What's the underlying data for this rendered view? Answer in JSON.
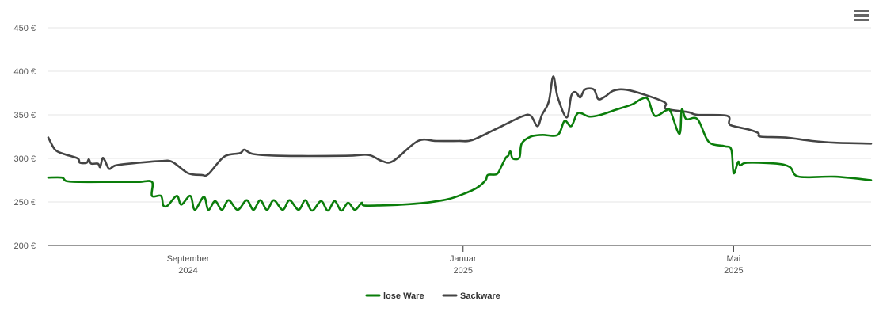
{
  "chart_data": {
    "type": "line",
    "y_axis": {
      "min": 200,
      "max": 450,
      "step": 50,
      "ticks": [
        "200 €",
        "250 €",
        "300 €",
        "350 €",
        "400 €",
        "450 €"
      ]
    },
    "x_axis": {
      "start": "2024-07-01",
      "end": "2025-07-01",
      "ticks": [
        {
          "date": "2024-09-01",
          "label": "September",
          "sublabel": "2024"
        },
        {
          "date": "2025-01-01",
          "label": "Januar",
          "sublabel": "2025"
        },
        {
          "date": "2025-05-01",
          "label": "Mai",
          "sublabel": "2025"
        }
      ]
    },
    "grid": "horizontal",
    "legend_position": "bottom-center",
    "series": [
      {
        "name": "lose Ware",
        "color": "#0a7d0a",
        "points": [
          [
            "2024-07-01",
            278
          ],
          [
            "2024-07-07",
            278
          ],
          [
            "2024-07-09",
            274
          ],
          [
            "2024-07-15",
            273
          ],
          [
            "2024-07-31",
            273
          ],
          [
            "2024-08-10",
            273
          ],
          [
            "2024-08-16",
            273
          ],
          [
            "2024-08-16",
            257
          ],
          [
            "2024-08-20",
            257
          ],
          [
            "2024-08-21",
            246
          ],
          [
            "2024-08-23",
            246
          ],
          [
            "2024-08-27",
            257
          ],
          [
            "2024-08-29",
            247
          ],
          [
            "2024-09-02",
            257
          ],
          [
            "2024-09-04",
            241
          ],
          [
            "2024-09-08",
            256
          ],
          [
            "2024-09-10",
            241
          ],
          [
            "2024-09-13",
            251
          ],
          [
            "2024-09-16",
            241
          ],
          [
            "2024-09-19",
            252
          ],
          [
            "2024-09-23",
            241
          ],
          [
            "2024-09-27",
            252
          ],
          [
            "2024-09-30",
            241
          ],
          [
            "2024-10-03",
            252
          ],
          [
            "2024-10-06",
            241
          ],
          [
            "2024-10-09",
            252
          ],
          [
            "2024-10-13",
            241
          ],
          [
            "2024-10-16",
            252
          ],
          [
            "2024-10-20",
            241
          ],
          [
            "2024-10-23",
            252
          ],
          [
            "2024-10-26",
            240
          ],
          [
            "2024-10-30",
            251
          ],
          [
            "2024-11-02",
            240
          ],
          [
            "2024-11-05",
            251
          ],
          [
            "2024-11-08",
            240
          ],
          [
            "2024-11-11",
            249
          ],
          [
            "2024-11-14",
            241
          ],
          [
            "2024-11-17",
            249
          ],
          [
            "2024-11-18",
            246
          ],
          [
            "2024-11-25",
            246
          ],
          [
            "2024-12-05",
            247
          ],
          [
            "2024-12-15",
            249
          ],
          [
            "2024-12-25",
            253
          ],
          [
            "2025-01-01",
            259
          ],
          [
            "2025-01-07",
            266
          ],
          [
            "2025-01-11",
            275
          ],
          [
            "2025-01-12",
            281
          ],
          [
            "2025-01-16",
            282
          ],
          [
            "2025-01-18",
            291
          ],
          [
            "2025-01-20",
            301
          ],
          [
            "2025-01-21",
            303
          ],
          [
            "2025-01-22",
            308
          ],
          [
            "2025-01-23",
            300
          ],
          [
            "2025-01-26",
            301
          ],
          [
            "2025-01-27",
            317
          ],
          [
            "2025-01-31",
            325
          ],
          [
            "2025-02-05",
            327
          ],
          [
            "2025-02-12",
            327
          ],
          [
            "2025-02-15",
            343
          ],
          [
            "2025-02-18",
            337
          ],
          [
            "2025-02-21",
            352
          ],
          [
            "2025-02-26",
            348
          ],
          [
            "2025-03-03",
            350
          ],
          [
            "2025-03-10",
            356
          ],
          [
            "2025-03-17",
            362
          ],
          [
            "2025-03-21",
            368
          ],
          [
            "2025-03-24",
            368
          ],
          [
            "2025-03-27",
            349
          ],
          [
            "2025-04-01",
            355
          ],
          [
            "2025-04-03",
            354
          ],
          [
            "2025-04-07",
            328
          ],
          [
            "2025-04-08",
            356
          ],
          [
            "2025-04-10",
            345
          ],
          [
            "2025-04-15",
            345
          ],
          [
            "2025-04-20",
            319
          ],
          [
            "2025-04-27",
            314
          ],
          [
            "2025-04-30",
            310
          ],
          [
            "2025-05-01",
            283
          ],
          [
            "2025-05-03",
            296
          ],
          [
            "2025-05-04",
            292
          ],
          [
            "2025-05-07",
            295
          ],
          [
            "2025-05-20",
            294
          ],
          [
            "2025-05-26",
            290
          ],
          [
            "2025-05-30",
            279
          ],
          [
            "2025-06-15",
            279
          ],
          [
            "2025-07-01",
            275
          ]
        ]
      },
      {
        "name": "Sackware",
        "color": "#444444",
        "points": [
          [
            "2024-07-01",
            324
          ],
          [
            "2024-07-04",
            310
          ],
          [
            "2024-07-08",
            305
          ],
          [
            "2024-07-14",
            300
          ],
          [
            "2024-07-15",
            295
          ],
          [
            "2024-07-18",
            295
          ],
          [
            "2024-07-19",
            299
          ],
          [
            "2024-07-20",
            294
          ],
          [
            "2024-07-23",
            294
          ],
          [
            "2024-07-24",
            290
          ],
          [
            "2024-07-25",
            300
          ],
          [
            "2024-07-26",
            298
          ],
          [
            "2024-07-28",
            288
          ],
          [
            "2024-07-31",
            292
          ],
          [
            "2024-08-10",
            295
          ],
          [
            "2024-08-20",
            297
          ],
          [
            "2024-08-25",
            296
          ],
          [
            "2024-09-01",
            283
          ],
          [
            "2024-09-07",
            281
          ],
          [
            "2024-09-10",
            282
          ],
          [
            "2024-09-17",
            302
          ],
          [
            "2024-09-24",
            306
          ],
          [
            "2024-09-26",
            310
          ],
          [
            "2024-09-30",
            305
          ],
          [
            "2024-10-12",
            303
          ],
          [
            "2024-11-10",
            303
          ],
          [
            "2024-11-20",
            304
          ],
          [
            "2024-11-26",
            297
          ],
          [
            "2024-12-01",
            297
          ],
          [
            "2024-12-12",
            320
          ],
          [
            "2024-12-20",
            320
          ],
          [
            "2024-12-30",
            320
          ],
          [
            "2025-01-05",
            321
          ],
          [
            "2025-01-15",
            333
          ],
          [
            "2025-01-27",
            348
          ],
          [
            "2025-01-31",
            349
          ],
          [
            "2025-02-03",
            337
          ],
          [
            "2025-02-05",
            350
          ],
          [
            "2025-02-08",
            365
          ],
          [
            "2025-02-10",
            394
          ],
          [
            "2025-02-12",
            370
          ],
          [
            "2025-02-16",
            347
          ],
          [
            "2025-02-18",
            372
          ],
          [
            "2025-02-20",
            376
          ],
          [
            "2025-02-22",
            370
          ],
          [
            "2025-02-24",
            379
          ],
          [
            "2025-02-28",
            379
          ],
          [
            "2025-03-02",
            368
          ],
          [
            "2025-03-05",
            371
          ],
          [
            "2025-03-09",
            378
          ],
          [
            "2025-03-16",
            378
          ],
          [
            "2025-03-31",
            365
          ],
          [
            "2025-04-01",
            357
          ],
          [
            "2025-04-11",
            353
          ],
          [
            "2025-04-15",
            350
          ],
          [
            "2025-04-28",
            349
          ],
          [
            "2025-04-29",
            340
          ],
          [
            "2025-05-01",
            337
          ],
          [
            "2025-05-08",
            333
          ],
          [
            "2025-05-12",
            329
          ],
          [
            "2025-05-13",
            325
          ],
          [
            "2025-05-24",
            324
          ],
          [
            "2025-06-05",
            320
          ],
          [
            "2025-06-15",
            318
          ],
          [
            "2025-07-01",
            317
          ]
        ]
      }
    ]
  }
}
